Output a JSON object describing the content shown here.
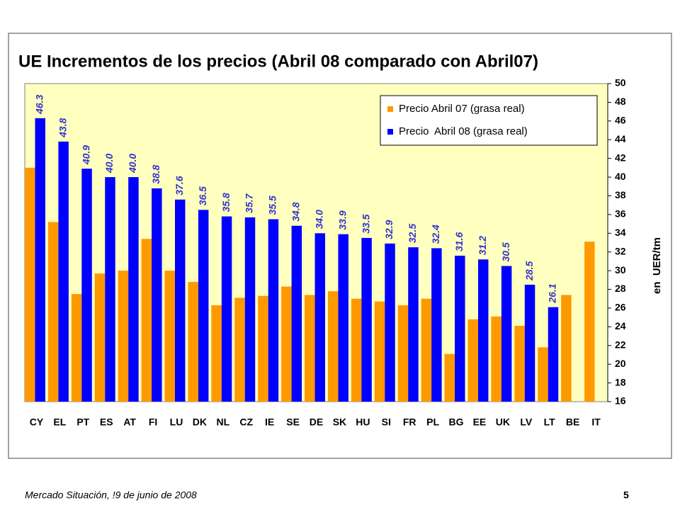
{
  "chart_data": {
    "type": "bar",
    "title": "UE Incrementos de los precios (Abril 08 comparado con Abril07)",
    "ylabel": "en  UER/tm",
    "categories": [
      "CY",
      "EL",
      "PT",
      "ES",
      "AT",
      "FI",
      "LU",
      "DK",
      "NL",
      "CZ",
      "IE",
      "SE",
      "DE",
      "SK",
      "HU",
      "SI",
      "FR",
      "PL",
      "BG",
      "EE",
      "UK",
      "LV",
      "LT",
      "BE",
      "IT"
    ],
    "series": [
      {
        "name": "Precio Abril 07 (grasa real)",
        "color": "#ff9900",
        "values": [
          41.0,
          35.2,
          27.5,
          29.7,
          30.0,
          33.4,
          30.0,
          28.8,
          26.3,
          27.1,
          27.3,
          28.3,
          27.4,
          27.8,
          27.0,
          26.7,
          26.3,
          27.0,
          21.1,
          24.8,
          25.1,
          24.1,
          21.8,
          27.4,
          33.1
        ]
      },
      {
        "name": "Precio  Abril 08 (grasa real)",
        "color": "#0000ff",
        "values": [
          46.3,
          43.8,
          40.9,
          40.0,
          40.0,
          38.8,
          37.6,
          36.5,
          35.8,
          35.7,
          35.5,
          34.8,
          34.0,
          33.9,
          33.5,
          32.9,
          32.5,
          32.4,
          31.6,
          31.2,
          30.5,
          28.5,
          26.1,
          null,
          null
        ],
        "value_labels": [
          "46.3",
          "43.8",
          "40.9",
          "40.0",
          "40.0",
          "38.8",
          "37.6",
          "36.5",
          "35.8",
          "35.7",
          "35.5",
          "34.8",
          "34.0",
          "33.9",
          "33.5",
          "32.9",
          "32.5",
          "32.4",
          "31.6",
          "31.2",
          "30.5",
          "28.5",
          "26.1",
          null,
          null
        ]
      }
    ],
    "ylim": [
      16,
      50
    ],
    "yticks": [
      16,
      18,
      20,
      22,
      24,
      26,
      28,
      30,
      32,
      34,
      36,
      38,
      40,
      42,
      44,
      46,
      48,
      50
    ],
    "y_axis_side": "right",
    "legend": "top-right",
    "grid": false
  },
  "footer": {
    "text": "Mercado Situación, !9 de junio de 2008",
    "page": "5"
  }
}
